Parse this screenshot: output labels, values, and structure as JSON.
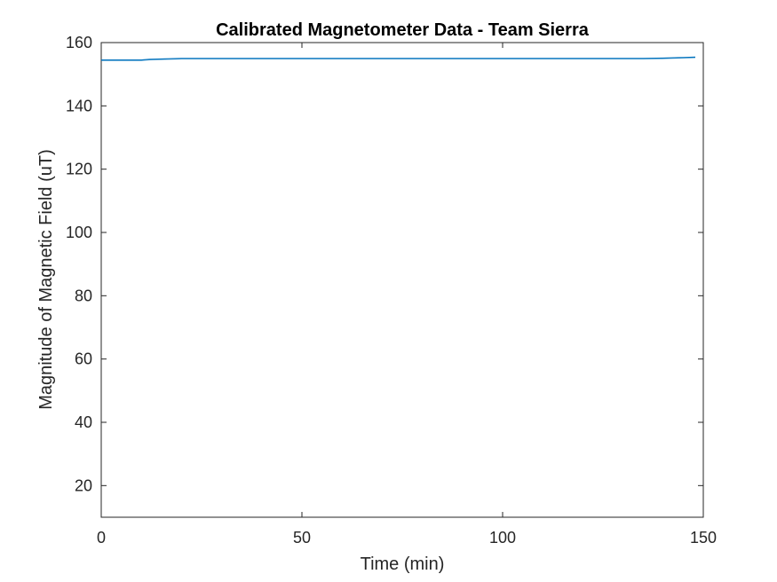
{
  "chart_data": {
    "type": "line",
    "title": "Calibrated Magnetometer Data - Team Sierra",
    "xlabel": "Time (min)",
    "ylabel": "Magnitude of Magnetic Field (uT)",
    "xlim": [
      0,
      150
    ],
    "ylim": [
      10,
      160
    ],
    "xticks": [
      0,
      50,
      100,
      150
    ],
    "yticks": [
      20,
      40,
      60,
      80,
      100,
      120,
      140,
      160
    ],
    "grid": false,
    "legend": "none",
    "series": [
      {
        "color": "#0072BD",
        "x": [
          0,
          5,
          10,
          12,
          15,
          20,
          25,
          30,
          40,
          50,
          60,
          70,
          80,
          90,
          100,
          110,
          120,
          125,
          130,
          135,
          140,
          145,
          148
        ],
        "y": [
          154.5,
          154.5,
          154.5,
          154.7,
          154.8,
          155.0,
          155.0,
          155.0,
          155.0,
          155.0,
          155.0,
          155.0,
          155.0,
          155.0,
          155.0,
          155.0,
          155.0,
          155.0,
          155.0,
          155.0,
          155.1,
          155.3,
          155.4
        ]
      }
    ]
  }
}
